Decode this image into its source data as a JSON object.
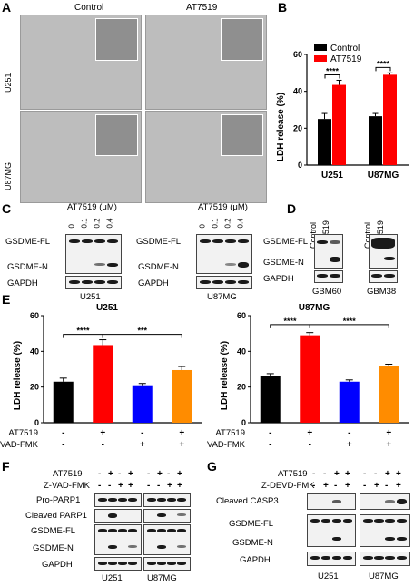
{
  "panels": [
    "A",
    "B",
    "C",
    "D",
    "E",
    "F",
    "G"
  ],
  "panel_a": {
    "columns": [
      "Control",
      "AT7519"
    ],
    "rows": [
      "U251",
      "U87MG"
    ]
  },
  "panel_c": {
    "u251_treatment": "AT7519 (μM)",
    "u87_treatment": "AT7519 (μM)",
    "doses": [
      "0",
      "0.1",
      "0.2",
      "0.4"
    ],
    "rows": [
      "GSDME-FL",
      "GSDME-N",
      "GAPDH"
    ],
    "cells": [
      "U251",
      "U87MG"
    ]
  },
  "panel_d": {
    "lanes": [
      "Control",
      "AT7519"
    ],
    "rows": [
      "GSDME-FL",
      "GSDME-N",
      "GAPDH"
    ],
    "cells": [
      "GBM60",
      "GBM38"
    ]
  },
  "panel_e": {
    "treatment_rows": [
      "AT7519",
      "Z-VAD-FMK"
    ],
    "signs_at7519": [
      "-",
      "+",
      "-",
      "+"
    ],
    "signs_zvad": [
      "-",
      "-",
      "+",
      "+"
    ]
  },
  "panel_f": {
    "treatments": [
      "AT7519",
      "Z-VAD-FMK"
    ],
    "signs_at7519": [
      "-",
      "+",
      "-",
      "+",
      "-",
      "+",
      "-",
      "+"
    ],
    "signs_zvad": [
      "-",
      "-",
      "+",
      "+",
      "-",
      "-",
      "+",
      "+"
    ],
    "rows": [
      "Pro-PARP1",
      "Cleaved PARP1",
      "GSDME-FL",
      "GSDME-N",
      "GAPDH"
    ],
    "cells": [
      "U251",
      "U87MG"
    ]
  },
  "panel_g": {
    "treatments": [
      "AT7519",
      "Z-DEVD-FMK"
    ],
    "signs_at7519": [
      "-",
      "-",
      "+",
      "+",
      "-",
      "-",
      "+",
      "+"
    ],
    "signs_zdevd": [
      "-",
      "+",
      "-",
      "+",
      "-",
      "+",
      "-",
      "+"
    ],
    "rows": [
      "Cleaved CASP3",
      "GSDME-FL",
      "GSDME-N",
      "GAPDH"
    ],
    "cells": [
      "U251",
      "U87MG"
    ]
  },
  "colors": {
    "control": "#000000",
    "at7519": "#ff0000",
    "zvad": "#0000ff",
    "combo": "#ff8c00"
  },
  "chart_data": [
    {
      "id": "B",
      "type": "bar",
      "categories": [
        "U251",
        "U87MG"
      ],
      "series": [
        {
          "name": "Control",
          "values": [
            25,
            26.5
          ],
          "errors": [
            3,
            1.5
          ]
        },
        {
          "name": "AT7519",
          "values": [
            43.5,
            49
          ],
          "errors": [
            2.5,
            1
          ]
        }
      ],
      "ylabel": "LDH release (%)",
      "ylim": [
        0,
        60
      ],
      "yticks": [
        0,
        20,
        40,
        60
      ],
      "significance": [
        "****",
        "****"
      ],
      "legend": "top-left"
    },
    {
      "id": "E-U251",
      "type": "bar",
      "title": "U251",
      "values": [
        23,
        43.5,
        21,
        29.5
      ],
      "errors": [
        2,
        3,
        1,
        2
      ],
      "ylabel": "LDH release (%)",
      "ylim": [
        0,
        60
      ],
      "yticks": [
        0,
        20,
        40,
        60
      ],
      "significance": [
        {
          "from": 0,
          "to": 1,
          "label": "****"
        },
        {
          "from": 1,
          "to": 3,
          "label": "***"
        }
      ]
    },
    {
      "id": "E-U87MG",
      "type": "bar",
      "title": "U87MG",
      "values": [
        26,
        49,
        23,
        32
      ],
      "errors": [
        1.5,
        1.5,
        1,
        0.8
      ],
      "ylabel": "LDH release (%)",
      "ylim": [
        0,
        60
      ],
      "yticks": [
        0,
        20,
        40,
        60
      ],
      "significance": [
        {
          "from": 0,
          "to": 1,
          "label": "****"
        },
        {
          "from": 1,
          "to": 3,
          "label": "****"
        }
      ]
    }
  ]
}
